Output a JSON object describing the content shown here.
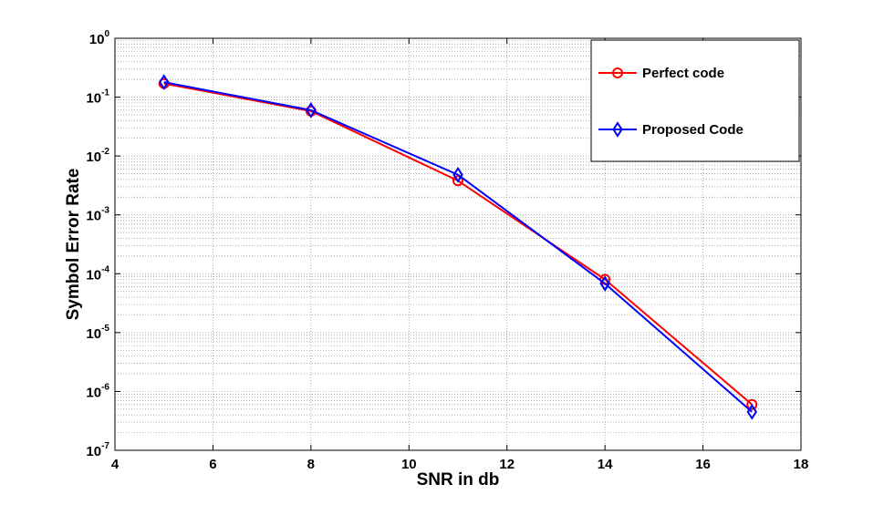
{
  "chart_data": {
    "type": "line",
    "title": "",
    "xlabel": "SNR in db",
    "ylabel": "Symbol Error Rate",
    "xlim": [
      4,
      18
    ],
    "ylim": [
      1e-07,
      1
    ],
    "yscale": "log",
    "xticks": [
      4,
      6,
      8,
      10,
      12,
      14,
      16,
      18
    ],
    "yticks": [
      {
        "base": "10",
        "exp": "0",
        "value": 1
      },
      {
        "base": "10",
        "exp": "-1",
        "value": 0.1
      },
      {
        "base": "10",
        "exp": "-2",
        "value": 0.01
      },
      {
        "base": "10",
        "exp": "-3",
        "value": 0.001
      },
      {
        "base": "10",
        "exp": "-4",
        "value": 0.0001
      },
      {
        "base": "10",
        "exp": "-5",
        "value": 1e-05
      },
      {
        "base": "10",
        "exp": "-6",
        "value": 1e-06
      },
      {
        "base": "10",
        "exp": "-7",
        "value": 1e-07
      }
    ],
    "grid": true,
    "legend_position": "top-right",
    "x": [
      5,
      8,
      11,
      14,
      17
    ],
    "series": [
      {
        "name": "Perfect code",
        "color": "#ff0000",
        "marker": "circle",
        "values": [
          0.17,
          0.058,
          0.0038,
          8e-05,
          6e-07
        ]
      },
      {
        "name": "Proposed Code",
        "color": "#0000ff",
        "marker": "diamond",
        "values": [
          0.18,
          0.06,
          0.0048,
          6.8e-05,
          4.5e-07
        ]
      }
    ]
  }
}
